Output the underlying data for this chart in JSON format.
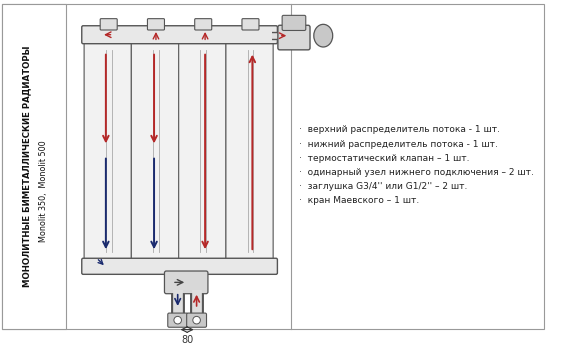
{
  "left_label_line1": "МОНОЛИТНЫЕ БИМЕТАЛЛИЧЕСКИЕ РАДИАТОРЫ",
  "left_label_line2": "Monolit 350,  Monolit 500",
  "bullet_items": [
    "верхний распределитель потока - 1 шт.",
    "нижний распределитель потока - 1 шт.",
    "термостатический клапан – 1 шт.",
    "одинарный узел нижнего подключения – 2 шт.",
    "заглушка G3/4'' или G1/2'' – 2 шт.",
    "кран Маевского – 1 шт."
  ],
  "dim_label": "80",
  "red_color": "#b52828",
  "blue_color": "#1a2a6e",
  "dark_color": "#333333",
  "gray_color": "#888888",
  "light_gray": "#d8d8d8",
  "mid_gray": "#bbbbbb",
  "edge_color": "#555555",
  "panel_edge": "#999999"
}
